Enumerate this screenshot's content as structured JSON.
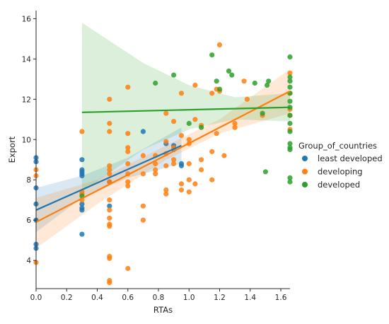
{
  "chart_data": {
    "type": "scatter",
    "xlabel": "RTAs",
    "ylabel": "Export",
    "xlim": [
      0,
      1.66
    ],
    "ylim": [
      2.6,
      16.4
    ],
    "xticks": [
      "0.0",
      "0.2",
      "0.4",
      "0.6",
      "0.8",
      "1.0",
      "1.2",
      "1.4",
      "1.6"
    ],
    "yticks": [
      "4",
      "6",
      "8",
      "10",
      "12",
      "14",
      "16"
    ],
    "grid": false,
    "legend_title": "Group_of_countries",
    "legend_position": "center-right",
    "series": [
      {
        "name": "least developed",
        "color": "#1f77b4",
        "points": [
          [
            0.0,
            9.1
          ],
          [
            0.0,
            8.9
          ],
          [
            0.0,
            7.6
          ],
          [
            0.0,
            6.8
          ],
          [
            0.0,
            6.0
          ],
          [
            0.0,
            4.8
          ],
          [
            0.0,
            4.6
          ],
          [
            0.3,
            9.0
          ],
          [
            0.3,
            8.5
          ],
          [
            0.3,
            8.4
          ],
          [
            0.3,
            8.3
          ],
          [
            0.3,
            8.2
          ],
          [
            0.3,
            6.8
          ],
          [
            0.3,
            6.6
          ],
          [
            0.3,
            6.5
          ],
          [
            0.3,
            5.3
          ],
          [
            0.48,
            6.7
          ],
          [
            0.48,
            7.9
          ],
          [
            0.7,
            10.4
          ],
          [
            0.85,
            9.8
          ],
          [
            0.9,
            9.7
          ],
          [
            0.9,
            9.5
          ],
          [
            0.95,
            8.8
          ],
          [
            0.95,
            8.7
          ]
        ],
        "fit": {
          "x0": 0.0,
          "y0": 6.5,
          "x1": 0.95,
          "y1": 9.7
        },
        "ci": {
          "x": [
            0.0,
            0.3,
            0.6,
            0.95
          ],
          "lower": [
            5.4,
            7.1,
            8.1,
            8.8
          ],
          "upper": [
            7.6,
            8.2,
            9.1,
            10.6
          ]
        }
      },
      {
        "name": "developing",
        "color": "#ff7f0e",
        "points": [
          [
            0.0,
            8.2
          ],
          [
            0.0,
            8.5
          ],
          [
            0.0,
            3.9
          ],
          [
            0.3,
            10.4
          ],
          [
            0.3,
            7.4
          ],
          [
            0.3,
            7.0
          ],
          [
            0.3,
            7.3
          ],
          [
            0.48,
            12.0
          ],
          [
            0.48,
            10.8
          ],
          [
            0.48,
            10.4
          ],
          [
            0.48,
            8.7
          ],
          [
            0.48,
            8.5
          ],
          [
            0.48,
            8.3
          ],
          [
            0.48,
            7.9
          ],
          [
            0.48,
            7.0
          ],
          [
            0.48,
            6.5
          ],
          [
            0.48,
            6.1
          ],
          [
            0.48,
            5.8
          ],
          [
            0.48,
            5.7
          ],
          [
            0.48,
            4.2
          ],
          [
            0.48,
            4.1
          ],
          [
            0.48,
            3.0
          ],
          [
            0.48,
            2.9
          ],
          [
            0.6,
            12.6
          ],
          [
            0.6,
            10.3
          ],
          [
            0.6,
            9.6
          ],
          [
            0.6,
            9.4
          ],
          [
            0.6,
            8.8
          ],
          [
            0.6,
            8.3
          ],
          [
            0.6,
            7.9
          ],
          [
            0.6,
            7.7
          ],
          [
            0.6,
            3.6
          ],
          [
            0.7,
            9.2
          ],
          [
            0.7,
            8.3
          ],
          [
            0.7,
            6.7
          ],
          [
            0.7,
            6.0
          ],
          [
            0.78,
            9.2
          ],
          [
            0.78,
            8.8
          ],
          [
            0.78,
            8.5
          ],
          [
            0.78,
            8.3
          ],
          [
            0.85,
            11.3
          ],
          [
            0.85,
            9.9
          ],
          [
            0.85,
            9.3
          ],
          [
            0.85,
            8.7
          ],
          [
            0.85,
            7.5
          ],
          [
            0.85,
            7.3
          ],
          [
            0.9,
            10.9
          ],
          [
            0.9,
            9.6
          ],
          [
            0.9,
            9.0
          ],
          [
            0.9,
            8.8
          ],
          [
            0.95,
            12.3
          ],
          [
            0.95,
            10.2
          ],
          [
            0.95,
            7.8
          ],
          [
            0.95,
            7.5
          ],
          [
            1.0,
            10.0
          ],
          [
            1.0,
            9.8
          ],
          [
            1.0,
            8.8
          ],
          [
            1.0,
            8.0
          ],
          [
            1.0,
            7.4
          ],
          [
            1.04,
            12.7
          ],
          [
            1.04,
            11.0
          ],
          [
            1.04,
            7.8
          ],
          [
            1.08,
            10.7
          ],
          [
            1.08,
            9.0
          ],
          [
            1.08,
            8.5
          ],
          [
            1.15,
            12.3
          ],
          [
            1.15,
            9.4
          ],
          [
            1.15,
            8.0
          ],
          [
            1.18,
            12.5
          ],
          [
            1.18,
            10.3
          ],
          [
            1.2,
            14.7
          ],
          [
            1.2,
            12.4
          ],
          [
            1.23,
            9.2
          ],
          [
            1.3,
            10.8
          ],
          [
            1.3,
            10.6
          ],
          [
            1.36,
            12.9
          ],
          [
            1.38,
            12.0
          ],
          [
            1.48,
            11.2
          ],
          [
            1.66,
            13.3
          ],
          [
            1.66,
            12.3
          ],
          [
            1.66,
            11.5
          ],
          [
            1.66,
            11.2
          ],
          [
            1.66,
            10.5
          ]
        ],
        "fit": {
          "x0": 0.0,
          "y0": 5.9,
          "x1": 1.66,
          "y1": 12.4
        },
        "ci": {
          "x": [
            0.0,
            0.4,
            0.85,
            1.2,
            1.66
          ],
          "lower": [
            4.6,
            6.8,
            9.0,
            10.3,
            11.3
          ],
          "upper": [
            7.1,
            8.0,
            9.7,
            11.0,
            13.5
          ]
        }
      },
      {
        "name": "developed",
        "color": "#2ca02c",
        "points": [
          [
            0.3,
            7.2
          ],
          [
            0.78,
            12.8
          ],
          [
            0.9,
            13.2
          ],
          [
            1.0,
            10.8
          ],
          [
            1.08,
            10.6
          ],
          [
            1.15,
            14.2
          ],
          [
            1.18,
            12.9
          ],
          [
            1.2,
            12.5
          ],
          [
            1.26,
            13.4
          ],
          [
            1.28,
            13.2
          ],
          [
            1.43,
            12.8
          ],
          [
            1.48,
            11.3
          ],
          [
            1.5,
            8.4
          ],
          [
            1.51,
            12.7
          ],
          [
            1.52,
            12.9
          ],
          [
            1.66,
            14.1
          ],
          [
            1.66,
            13.1
          ],
          [
            1.66,
            12.9
          ],
          [
            1.66,
            12.6
          ],
          [
            1.66,
            12.3
          ],
          [
            1.66,
            11.9
          ],
          [
            1.66,
            11.6
          ],
          [
            1.66,
            11.2
          ],
          [
            1.66,
            10.8
          ],
          [
            1.66,
            10.4
          ],
          [
            1.66,
            9.8
          ],
          [
            1.66,
            9.6
          ],
          [
            1.66,
            9.5
          ],
          [
            1.66,
            8.1
          ],
          [
            1.66,
            7.9
          ]
        ],
        "fit": {
          "x0": 0.3,
          "y0": 11.35,
          "x1": 1.66,
          "y1": 11.6
        },
        "ci": {
          "x": [
            0.3,
            0.7,
            1.0,
            1.3,
            1.66
          ],
          "lower": [
            7.4,
            9.5,
            10.5,
            11.0,
            10.9
          ],
          "upper": [
            15.8,
            13.8,
            12.7,
            12.1,
            12.3
          ]
        }
      }
    ]
  }
}
